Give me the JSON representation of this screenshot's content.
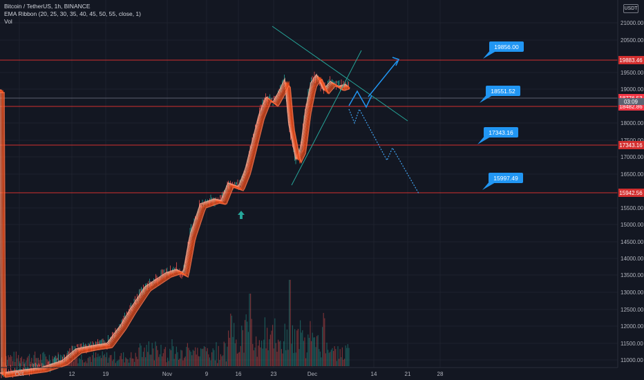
{
  "header": {
    "symbol_line": "Bitcoin / TetherUS, 1h, BINANCE",
    "indicator_line": "EMA Ribbon (20, 25, 30, 35, 40, 45, 50, 55, close, 1)",
    "volume_label": "Vol",
    "currency": "USDT"
  },
  "price_axis": {
    "ticks": [
      "21000.00",
      "20500.00",
      "19500.00",
      "19000.00",
      "18000.00",
      "17500.00",
      "17000.00",
      "16500.00",
      "15500.00",
      "15000.00",
      "14500.00",
      "14000.00",
      "13500.00",
      "13000.00",
      "12500.00",
      "12000.00",
      "11500.00",
      "11000.00"
    ]
  },
  "time_axis": {
    "labels": [
      "Oct",
      "12",
      "19",
      "Nov",
      "9",
      "16",
      "23",
      "Dec",
      "14",
      "21",
      "28"
    ]
  },
  "horizontal_levels": [
    {
      "label": "19883.46"
    },
    {
      "label": "18776.53"
    },
    {
      "label": "18482.86"
    },
    {
      "label": "17343.16"
    },
    {
      "label": "15942.56"
    }
  ],
  "partial_axis_label": "03:09",
  "annotations": [
    {
      "label": "19856.00"
    },
    {
      "label": "18551.52"
    },
    {
      "label": "17343.16"
    },
    {
      "label": "15997.49"
    }
  ],
  "colors": {
    "background": "#131722",
    "level_line": "#d32f2f",
    "callout": "#2196f3",
    "trendline": "#26a69a",
    "ribbon": "#ff7043",
    "up_arrow": "#26a69a"
  },
  "icons": [
    "up-arrow-icon"
  ]
}
